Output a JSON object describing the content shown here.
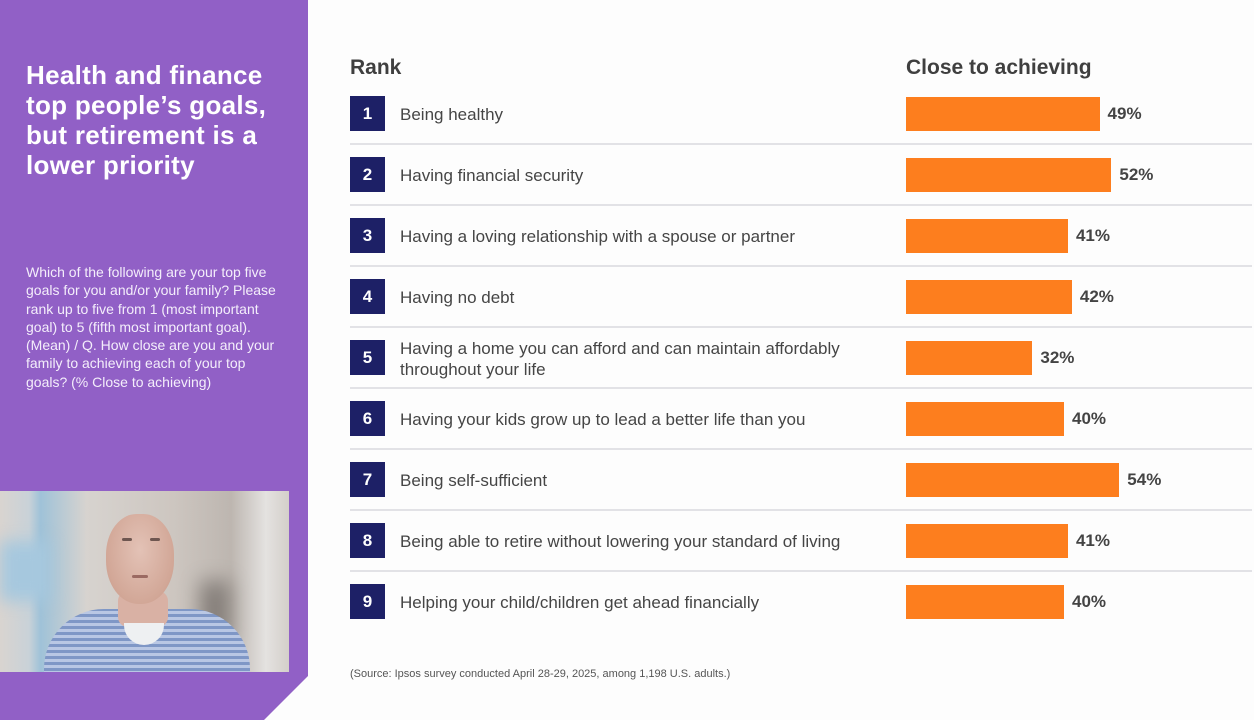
{
  "sidebar": {
    "title": "Health and finance top people’s goals, but retirement is a lower priority",
    "question": "Which of the following are your top five goals for you and/or your family? Please rank up to five from 1 (most important goal) to 5 (fifth most important goal). (Mean) / Q. How close are you and your family to achieving each of your top goals? (% Close to achieving)"
  },
  "colors": {
    "sidebar": "#9160c6",
    "rank_badge": "#1d2066",
    "bar": "#fd7e1e"
  },
  "chart_data": {
    "type": "bar",
    "orientation": "horizontal",
    "title": "Health and finance top people’s goals, but retirement is a lower priority",
    "rank_header": "Rank",
    "value_header": "Close to achieving",
    "unit": "%",
    "xlim": [
      0,
      100
    ],
    "rows": [
      {
        "rank": "1",
        "goal": "Being healthy",
        "value": 49,
        "label": "49%"
      },
      {
        "rank": "2",
        "goal": "Having financial security",
        "value": 52,
        "label": "52%"
      },
      {
        "rank": "3",
        "goal": "Having a loving relationship with a spouse or partner",
        "value": 41,
        "label": "41%"
      },
      {
        "rank": "4",
        "goal": "Having no debt",
        "value": 42,
        "label": "42%"
      },
      {
        "rank": "5",
        "goal": "Having a home you can afford and can maintain affordably throughout your life",
        "value": 32,
        "label": "32%"
      },
      {
        "rank": "6",
        "goal": "Having your kids grow up to lead a better life than you",
        "value": 40,
        "label": "40%"
      },
      {
        "rank": "7",
        "goal": "Being self-sufficient",
        "value": 54,
        "label": "54%"
      },
      {
        "rank": "8",
        "goal": "Being able to retire without lowering your standard of living",
        "value": 41,
        "label": "41%"
      },
      {
        "rank": "9",
        "goal": "Helping your child/children get ahead financially",
        "value": 40,
        "label": "40%"
      }
    ],
    "source": "(Source: Ipsos survey conducted April 28-29, 2025, among 1,198 U.S. adults.)"
  }
}
